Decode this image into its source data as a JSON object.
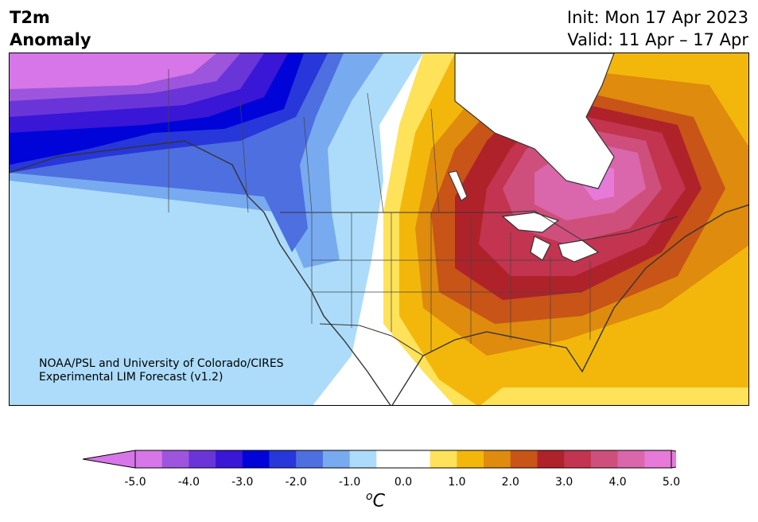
{
  "title": {
    "left_line1": "T2m",
    "left_line2": "Anomaly",
    "right_line1": "Init: Mon 17 Apr 2023",
    "right_line2": "Valid: 11 Apr – 17 Apr"
  },
  "credit": {
    "line1": "NOAA/PSL and University of Colorado/CIRES",
    "line2": "Experimental LIM Forecast (v1.2)"
  },
  "colorbar": {
    "unit_base": "o",
    "unit_main": "C",
    "ticks": [
      "-5.0",
      "-4.0",
      "-3.0",
      "-2.0",
      "-1.0",
      "0.0",
      "1.0",
      "2.0",
      "3.0",
      "4.0",
      "5.0"
    ],
    "colors": [
      "#d776e8",
      "#9e55dd",
      "#6a35d8",
      "#3a16d6",
      "#0004d8",
      "#2837d9",
      "#4e6fe0",
      "#78aaf0",
      "#acdcfa",
      "#ffffff",
      "#ffffff",
      "#fee25a",
      "#f3b70c",
      "#df8b0d",
      "#c85417",
      "#b0222a",
      "#c2344f",
      "#cf4f7c",
      "#da66ab",
      "#e779d9"
    ],
    "under_color": "#d776e8",
    "over_color": "#e779d9"
  },
  "map": {
    "region": "North America",
    "variable": "2m temperature anomaly",
    "pattern": "cold anomaly over Alaska and western Canada/US; warm anomaly centered over Great Lakes, Ontario and Quebec"
  }
}
